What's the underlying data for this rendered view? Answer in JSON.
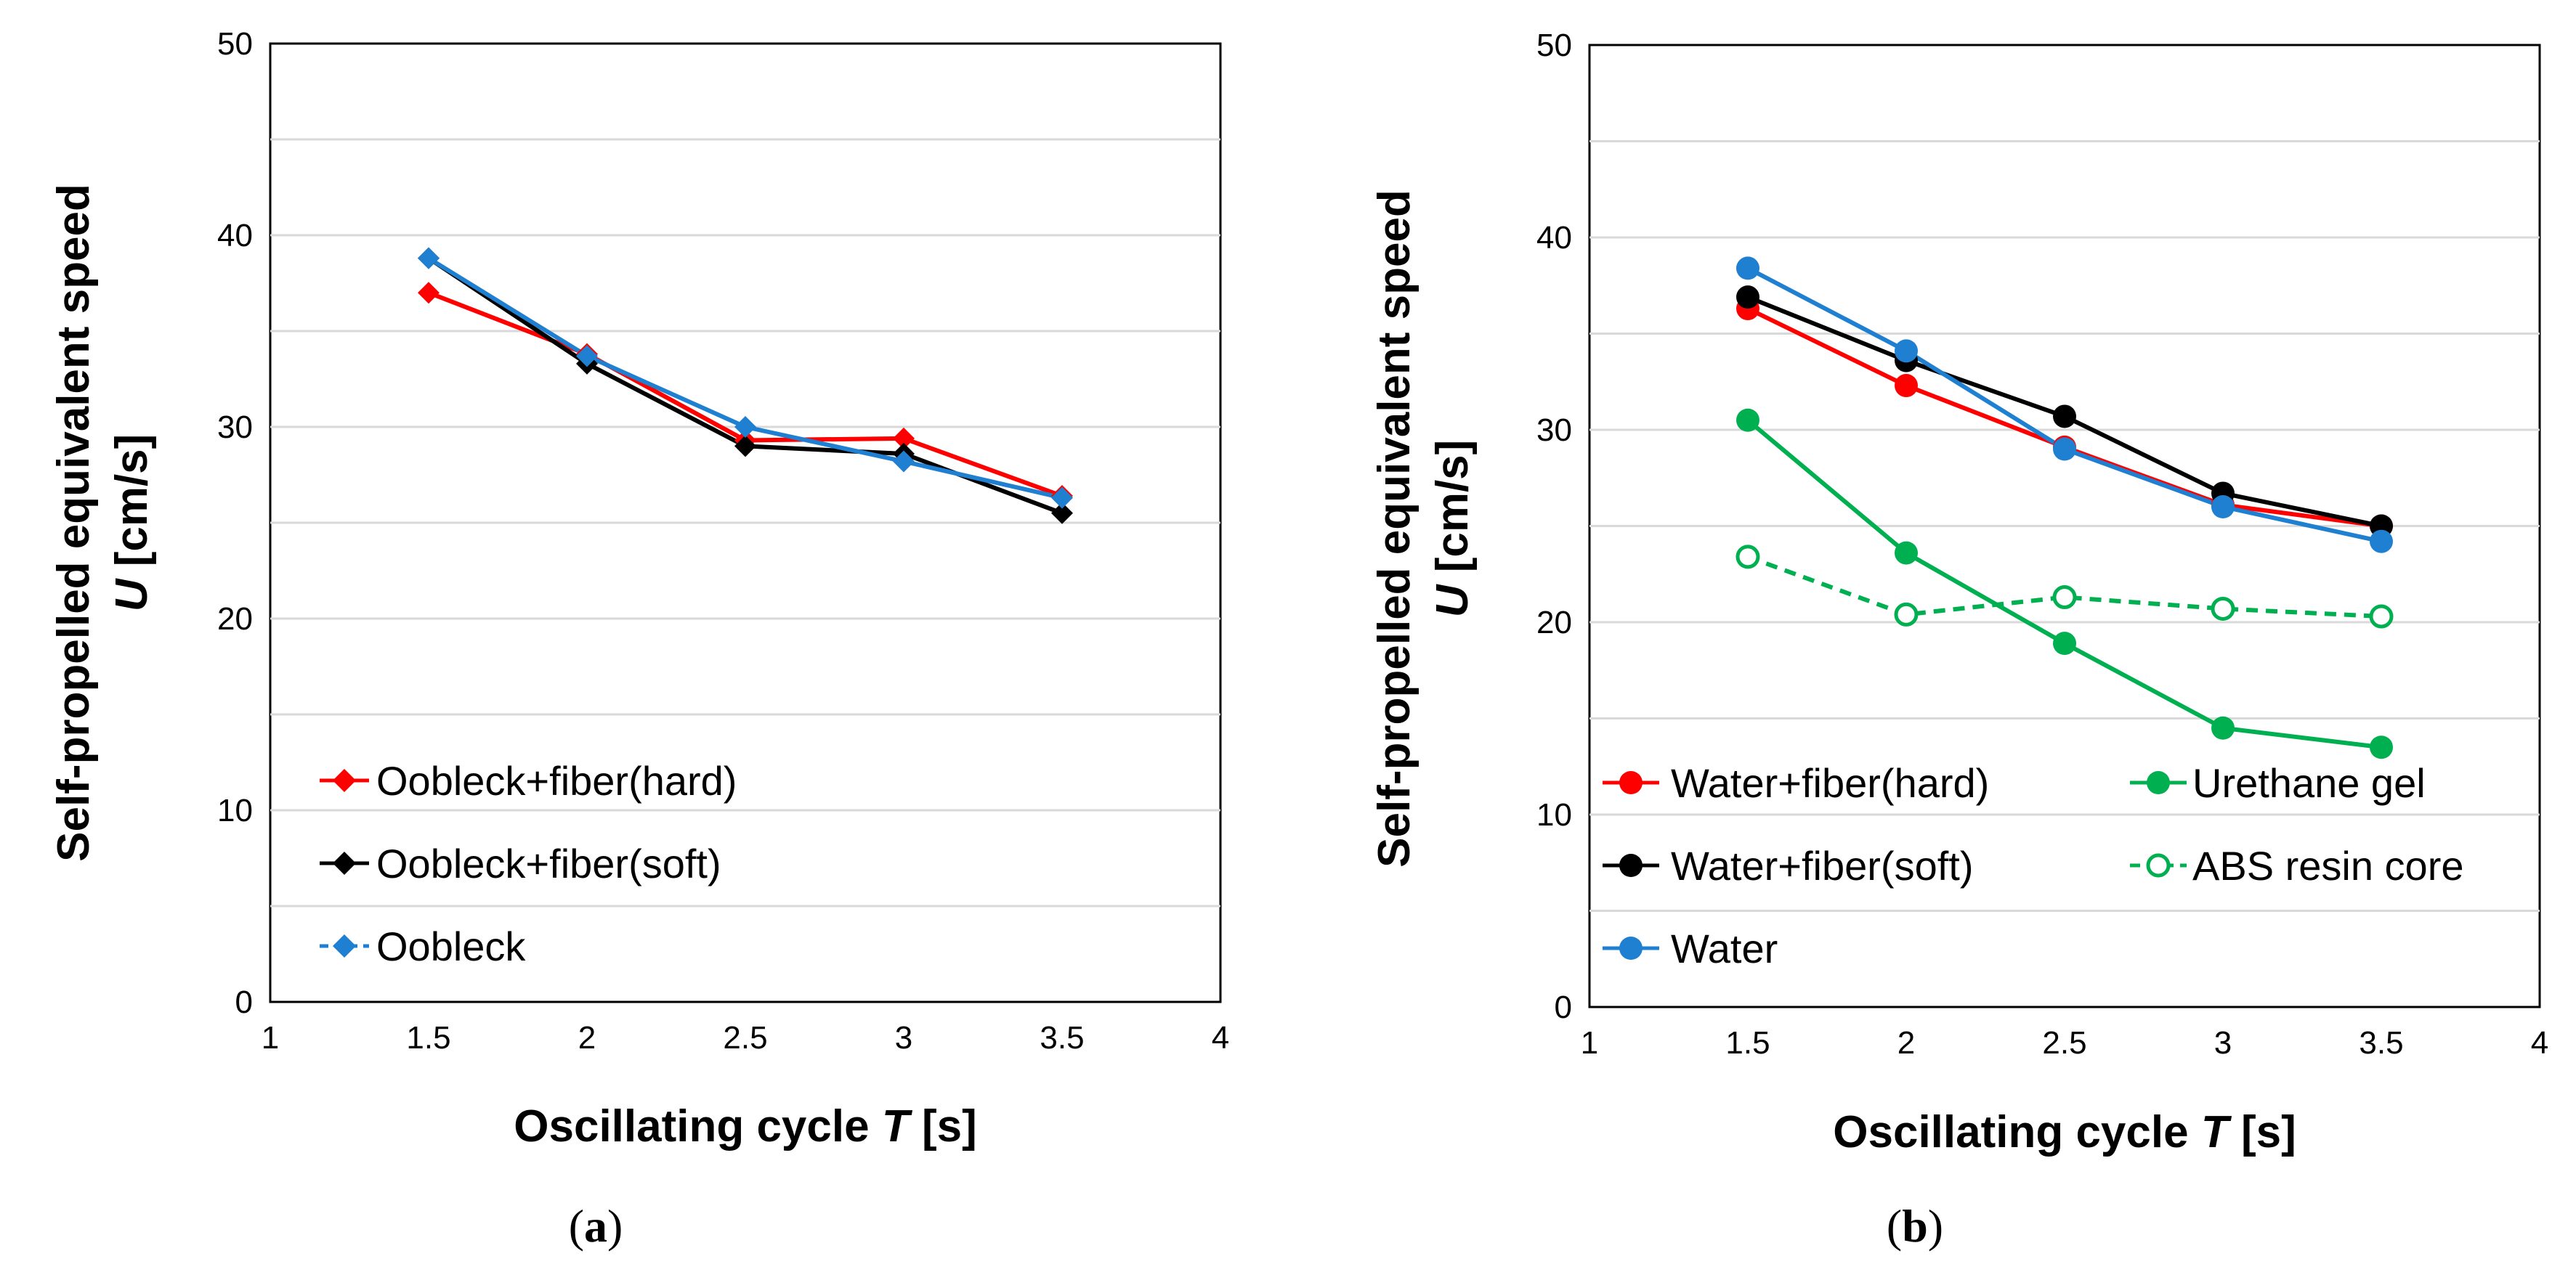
{
  "chart_data": [
    {
      "type": "line",
      "panel": "a",
      "caption_open": "(",
      "caption_letter": "a",
      "caption_close": ")",
      "xlabel": "Oscillating cycle ",
      "xlabel_var": "T",
      "xlabel_unit": " [s]",
      "ylabel_line1": "Self-propelled equivalent speed",
      "ylabel_var": "U",
      "ylabel_unit": " [cm/s]",
      "xlim": [
        1,
        4
      ],
      "ylim": [
        0,
        50
      ],
      "xticks": [
        "1",
        "1.5",
        "2",
        "2.5",
        "3",
        "3.5",
        "4"
      ],
      "yticks": [
        "0",
        "10",
        "20",
        "30",
        "40",
        "50"
      ],
      "grid": true,
      "legend_position": "bottom-left",
      "x": [
        1.5,
        2,
        2.5,
        3,
        3.5
      ],
      "series": [
        {
          "name": "Oobleck+fiber(hard)",
          "color": "#ff0000",
          "marker": "diamond",
          "filled": true,
          "dashed": false,
          "values": [
            37.0,
            33.8,
            29.3,
            29.4,
            26.4
          ]
        },
        {
          "name": "Oobleck+fiber(soft)",
          "color": "#000000",
          "marker": "diamond",
          "filled": true,
          "dashed": false,
          "values": [
            38.8,
            33.3,
            29.0,
            28.6,
            25.5
          ]
        },
        {
          "name": "Oobleck",
          "color": "#1f7fd0",
          "marker": "diamond",
          "filled": true,
          "dashed": false,
          "values": [
            38.8,
            33.7,
            30.0,
            28.2,
            26.3
          ]
        }
      ]
    },
    {
      "type": "line",
      "panel": "b",
      "caption_open": "(",
      "caption_letter": "b",
      "caption_close": ")",
      "xlabel": "Oscillating cycle ",
      "xlabel_var": "T",
      "xlabel_unit": " [s]",
      "ylabel_line1": "Self-propelled equivalent speed",
      "ylabel_var": "U",
      "ylabel_unit": " [cm/s]",
      "xlim": [
        1,
        4
      ],
      "ylim": [
        0,
        50
      ],
      "xticks": [
        "1",
        "1.5",
        "2",
        "2.5",
        "3",
        "3.5",
        "4"
      ],
      "yticks": [
        "0",
        "10",
        "20",
        "30",
        "40",
        "50"
      ],
      "grid": true,
      "legend_position": "bottom",
      "x": [
        1.5,
        2,
        2.5,
        3,
        3.5
      ],
      "series": [
        {
          "name": "Water+fiber(hard)",
          "color": "#ff0000",
          "marker": "circle",
          "filled": true,
          "dashed": false,
          "values": [
            36.3,
            32.3,
            29.1,
            26.1,
            25.0
          ]
        },
        {
          "name": "Water+fiber(soft)",
          "color": "#000000",
          "marker": "circle",
          "filled": true,
          "dashed": false,
          "values": [
            36.9,
            33.6,
            30.7,
            26.7,
            25.0
          ]
        },
        {
          "name": "Water",
          "color": "#1f7fd0",
          "marker": "circle",
          "filled": true,
          "dashed": false,
          "values": [
            38.4,
            34.1,
            29.0,
            26.0,
            24.2
          ]
        },
        {
          "name": "Urethane gel",
          "color": "#00b050",
          "marker": "circle",
          "filled": true,
          "dashed": false,
          "values": [
            30.5,
            23.6,
            18.9,
            14.5,
            13.5
          ]
        },
        {
          "name": "ABS resin core",
          "color": "#00b050",
          "marker": "circle",
          "filled": false,
          "dashed": true,
          "values": [
            23.4,
            20.4,
            21.3,
            20.7,
            20.3
          ]
        }
      ]
    }
  ]
}
